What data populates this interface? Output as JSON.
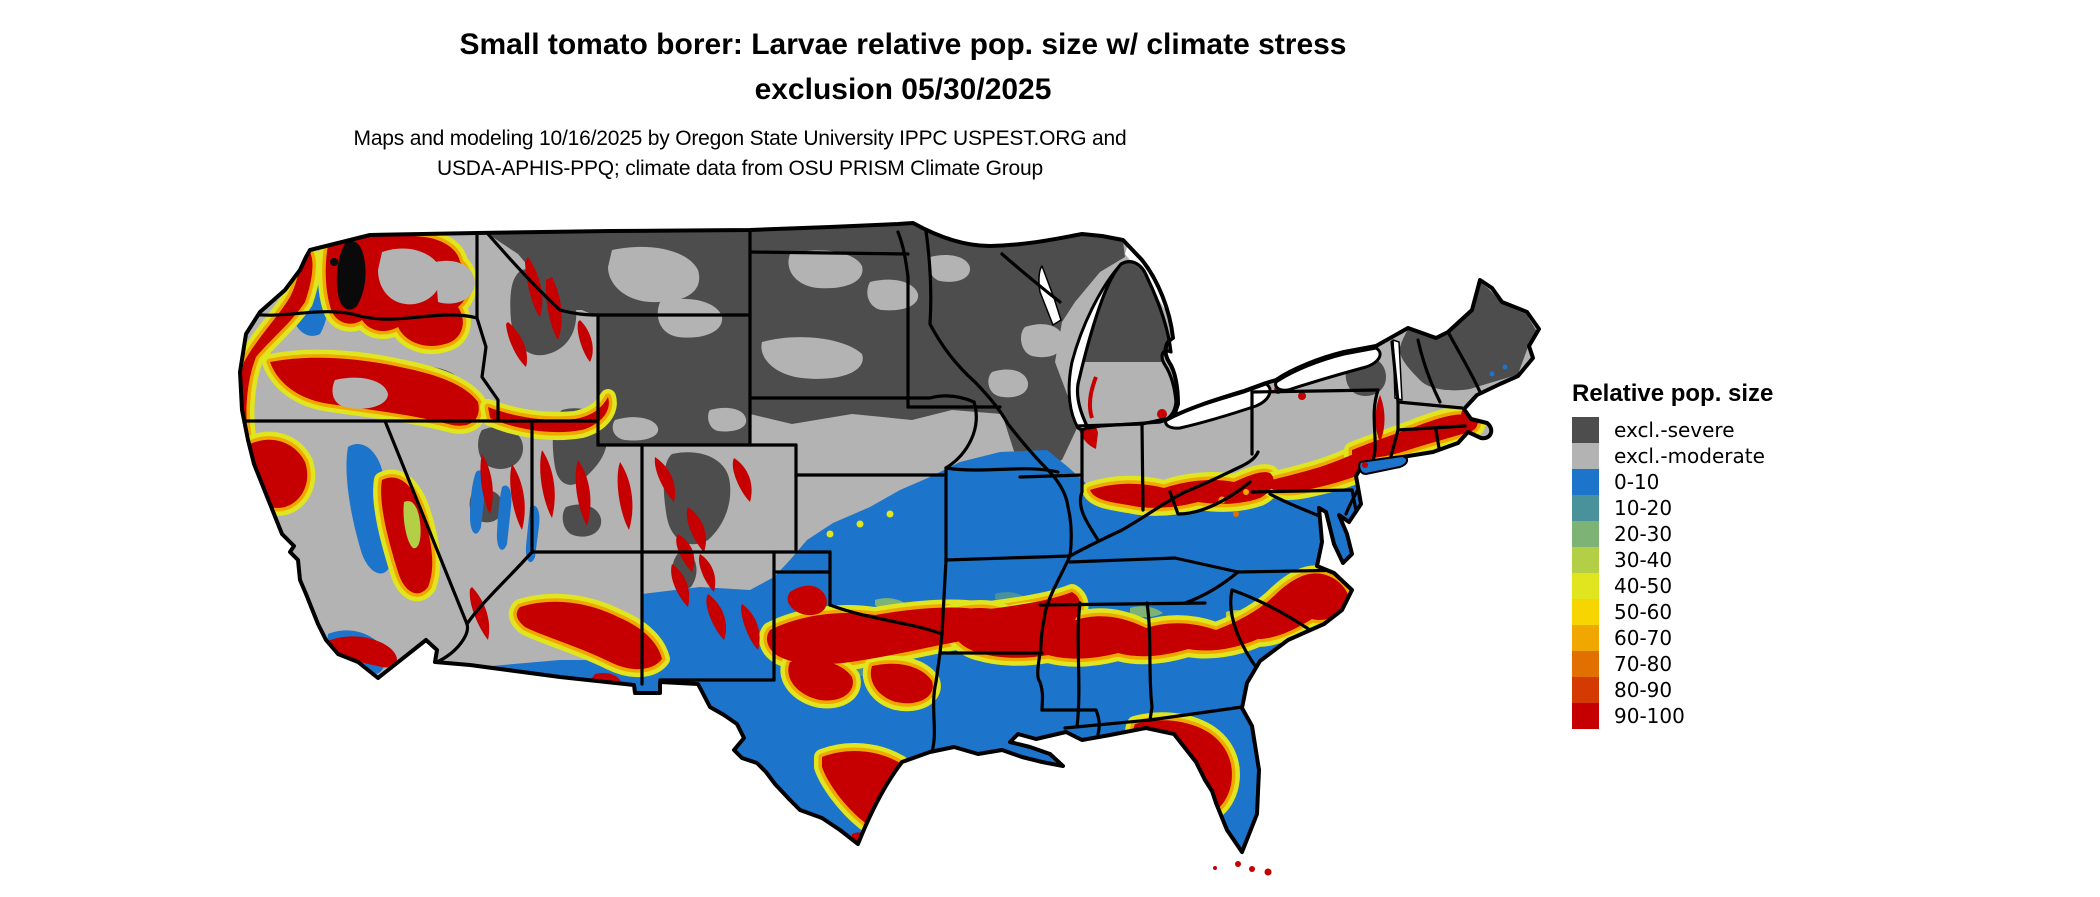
{
  "header": {
    "title_line1": "Small tomato borer: Larvae relative pop. size w/ climate stress",
    "title_line2": "exclusion 05/30/2025",
    "subtitle_line1": "Maps and modeling 10/16/2025 by Oregon State University IPPC USPEST.ORG and",
    "subtitle_line2": "USDA-APHIS-PPQ; climate data from OSU PRISM Climate Group"
  },
  "legend": {
    "title": "Relative pop. size",
    "items": [
      {
        "label": "excl.-severe",
        "color": "#4d4d4d"
      },
      {
        "label": "excl.-moderate",
        "color": "#b3b3b3"
      },
      {
        "label": "0-10",
        "color": "#1c74cb"
      },
      {
        "label": "10-20",
        "color": "#4a929b"
      },
      {
        "label": "20-30",
        "color": "#7db374"
      },
      {
        "label": "30-40",
        "color": "#b3cf45"
      },
      {
        "label": "40-50",
        "color": "#e0e51f"
      },
      {
        "label": "50-60",
        "color": "#f7d500"
      },
      {
        "label": "60-70",
        "color": "#f0a800"
      },
      {
        "label": "70-80",
        "color": "#e17000"
      },
      {
        "label": "80-90",
        "color": "#d63a03"
      },
      {
        "label": "90-100",
        "color": "#c60000"
      }
    ]
  },
  "map": {
    "area_label": "Continental United States choropleth map of larvae relative population size with climate stress exclusion"
  },
  "palette": {
    "excl_severe": "#4d4d4d",
    "excl_moderate": "#b3b3b3",
    "v0_10": "#1c74cb",
    "v10_20": "#4a929b",
    "v20_30": "#7db374",
    "v30_40": "#b3cf45",
    "v40_50": "#e0e51f",
    "v50_60": "#f7d500",
    "v60_70": "#f0a800",
    "v70_80": "#e17000",
    "v80_90": "#d63a03",
    "v90_100": "#c60000",
    "water": "#ffffff",
    "border": "#000000",
    "puget": "#0a0a0a"
  }
}
